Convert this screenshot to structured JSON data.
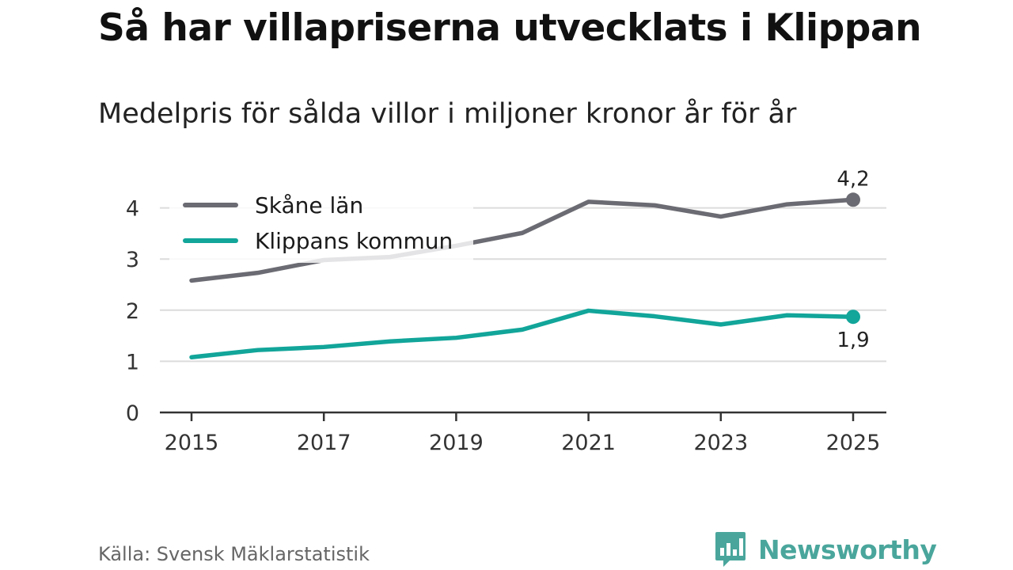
{
  "title": "Så har villapriserna utvecklats i Klippan",
  "subtitle": "Medelpris för sålda villor i miljoner kronor år för år",
  "source": "Källa: Svensk Mäklarstatistik",
  "brand": {
    "name": "Newsworthy",
    "icon": "bar-chart-speech-bubble-icon",
    "color": "#4aa69c"
  },
  "chart_data": {
    "type": "line",
    "x": [
      2015,
      2016,
      2017,
      2018,
      2019,
      2020,
      2021,
      2022,
      2023,
      2024,
      2025
    ],
    "xticks": [
      2015,
      2017,
      2019,
      2021,
      2023,
      2025
    ],
    "xtick_labels": [
      "2015",
      "2017",
      "2019",
      "2021",
      "2023",
      "2025"
    ],
    "ylim": [
      0,
      4.4
    ],
    "yticks": [
      0,
      1,
      2,
      3,
      4
    ],
    "ytick_labels": [
      "0",
      "1",
      "2",
      "3",
      "4"
    ],
    "grid": true,
    "legend": "top-left",
    "series": [
      {
        "name": "Skåne län",
        "color": "#6b6b73",
        "values": [
          2.58,
          2.73,
          2.98,
          3.04,
          3.26,
          3.51,
          4.12,
          4.05,
          3.83,
          4.07,
          4.16
        ],
        "end_label": "4,2",
        "end_label_position": "above"
      },
      {
        "name": "Klippans kommun",
        "color": "#12a59a",
        "values": [
          1.08,
          1.22,
          1.28,
          1.39,
          1.46,
          1.62,
          1.99,
          1.88,
          1.72,
          1.9,
          1.87
        ],
        "end_label": "1,9",
        "end_label_position": "below"
      }
    ]
  }
}
